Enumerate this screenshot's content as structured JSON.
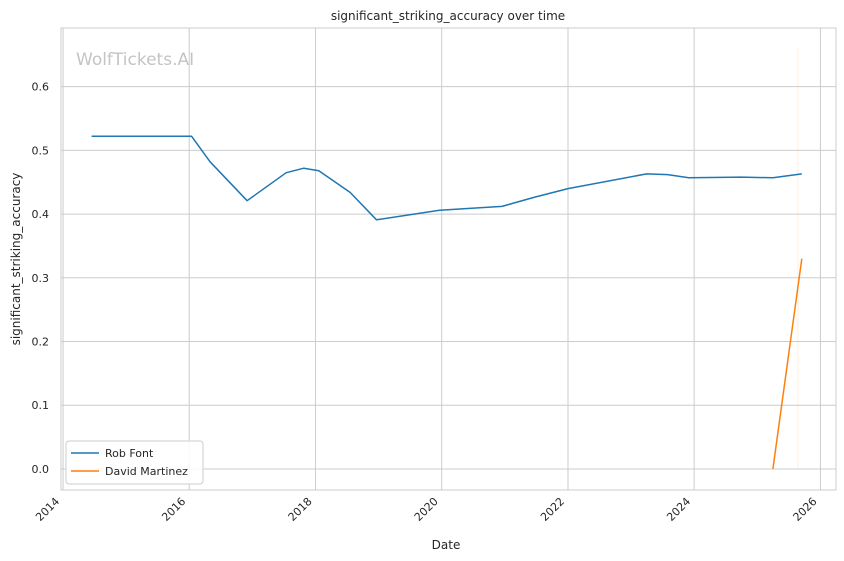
{
  "chart_data": {
    "type": "line",
    "title": "significant_striking_accuracy over time",
    "xlabel": "Date",
    "ylabel": "significant_striking_accuracy",
    "watermark": "WolfTickets.AI",
    "x_axis": {
      "type": "date",
      "range": [
        "2013-12-20",
        "2026-04-01"
      ],
      "ticks": [
        "2014",
        "2016",
        "2018",
        "2020",
        "2022",
        "2024",
        "2026"
      ]
    },
    "y_axis": {
      "range": [
        -0.033,
        0.692
      ],
      "ticks": [
        0.0,
        0.1,
        0.2,
        0.3,
        0.4,
        0.5,
        0.6
      ],
      "tick_labels": [
        "0.0",
        "0.1",
        "0.2",
        "0.3",
        "0.4",
        "0.5",
        "0.6"
      ]
    },
    "grid": true,
    "legend": {
      "position": "lower-left"
    },
    "series": [
      {
        "name": "Rob Font",
        "color": "#1f77b4",
        "points": [
          {
            "x": "2014-06-15",
            "y": 0.522
          },
          {
            "x": "2016-01-15",
            "y": 0.522
          },
          {
            "x": "2016-05-01",
            "y": 0.482
          },
          {
            "x": "2016-12-01",
            "y": 0.421
          },
          {
            "x": "2017-07-15",
            "y": 0.465
          },
          {
            "x": "2017-10-25",
            "y": 0.472
          },
          {
            "x": "2018-01-20",
            "y": 0.468
          },
          {
            "x": "2018-07-20",
            "y": 0.434
          },
          {
            "x": "2018-12-20",
            "y": 0.391
          },
          {
            "x": "2019-12-20",
            "y": 0.406
          },
          {
            "x": "2020-12-15",
            "y": 0.412
          },
          {
            "x": "2021-06-15",
            "y": 0.426
          },
          {
            "x": "2022-01-01",
            "y": 0.44
          },
          {
            "x": "2023-04-01",
            "y": 0.463
          },
          {
            "x": "2023-08-01",
            "y": 0.462
          },
          {
            "x": "2023-12-01",
            "y": 0.457
          },
          {
            "x": "2024-10-01",
            "y": 0.458
          },
          {
            "x": "2025-04-01",
            "y": 0.457
          },
          {
            "x": "2025-09-15",
            "y": 0.463
          }
        ]
      },
      {
        "name": "David Martinez",
        "color": "#ff7f0e",
        "points": [
          {
            "x": "2025-04-01",
            "y": 0.0
          },
          {
            "x": "2025-09-15",
            "y": 0.33
          }
        ]
      }
    ]
  }
}
